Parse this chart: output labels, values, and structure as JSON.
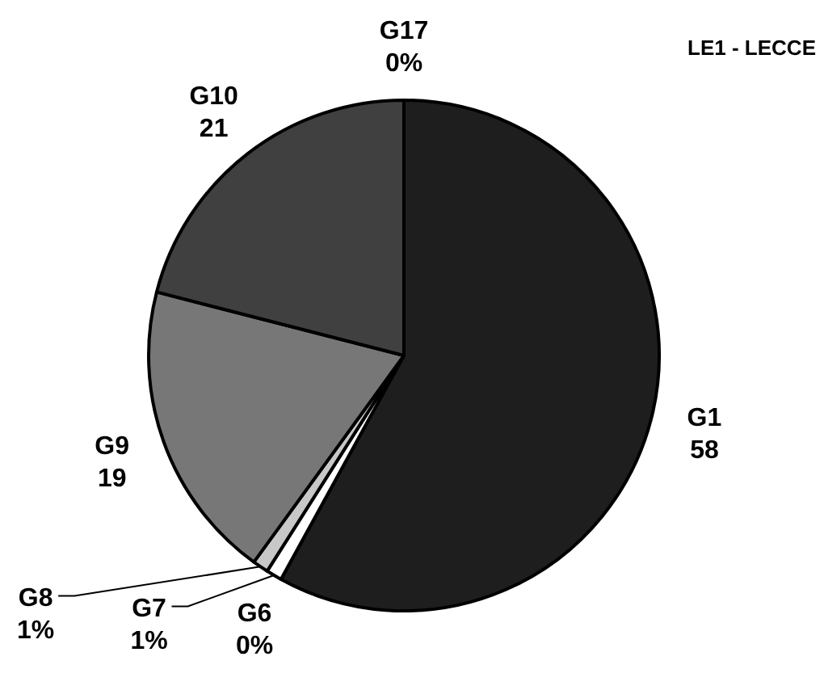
{
  "chart_data": {
    "type": "pie",
    "title": "LE1 - LECCE",
    "categories": [
      "G1",
      "G6",
      "G7",
      "G8",
      "G9",
      "G10",
      "G17"
    ],
    "values": [
      58,
      0,
      1,
      1,
      19,
      21,
      0
    ],
    "value_labels": [
      "58",
      "0%",
      "1%",
      "1%",
      "19",
      "21",
      "0%"
    ],
    "colors": [
      "#1e1e1e",
      null,
      "#ffffff",
      "#c8c8c8",
      "#777777",
      "#404040",
      null
    ],
    "legend": false
  }
}
